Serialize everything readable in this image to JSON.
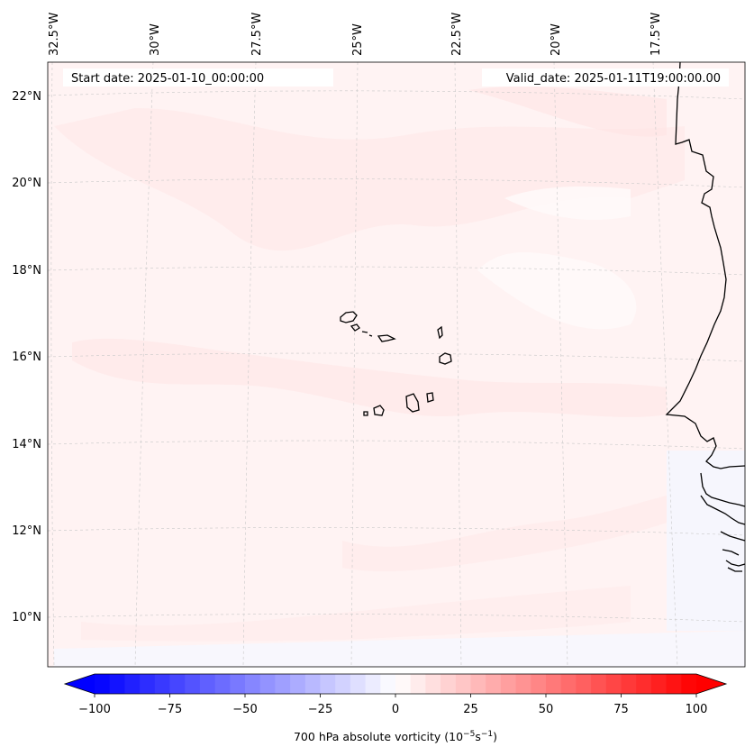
{
  "map": {
    "start_label": "Start date: 2025-01-10_00:00:00",
    "valid_label": "Valid_date: 2025-01-11T19:00:00.00",
    "lon_labels": [
      "32.5°W",
      "30°W",
      "27.5°W",
      "25°W",
      "22.5°W",
      "20°W",
      "17.5°W"
    ],
    "lat_labels": [
      "22°N",
      "20°N",
      "18°N",
      "16°N",
      "14°N",
      "12°N",
      "10°N"
    ],
    "coastline_color": "#000000",
    "gridline_color": "#c8c8c8"
  },
  "colorbar": {
    "ticks": [
      "−100",
      "−75",
      "−50",
      "−25",
      "0",
      "25",
      "50",
      "75",
      "100"
    ],
    "label_main": "700 hPa absolute vorticity (10",
    "label_exp1": "−5",
    "label_mid": "s",
    "label_exp2": "−1",
    "label_end": ")",
    "min": -100,
    "max": 100,
    "step": 5,
    "color_low": "#0000ff",
    "color_mid": "#ffffff",
    "color_high": "#ff0000"
  }
}
